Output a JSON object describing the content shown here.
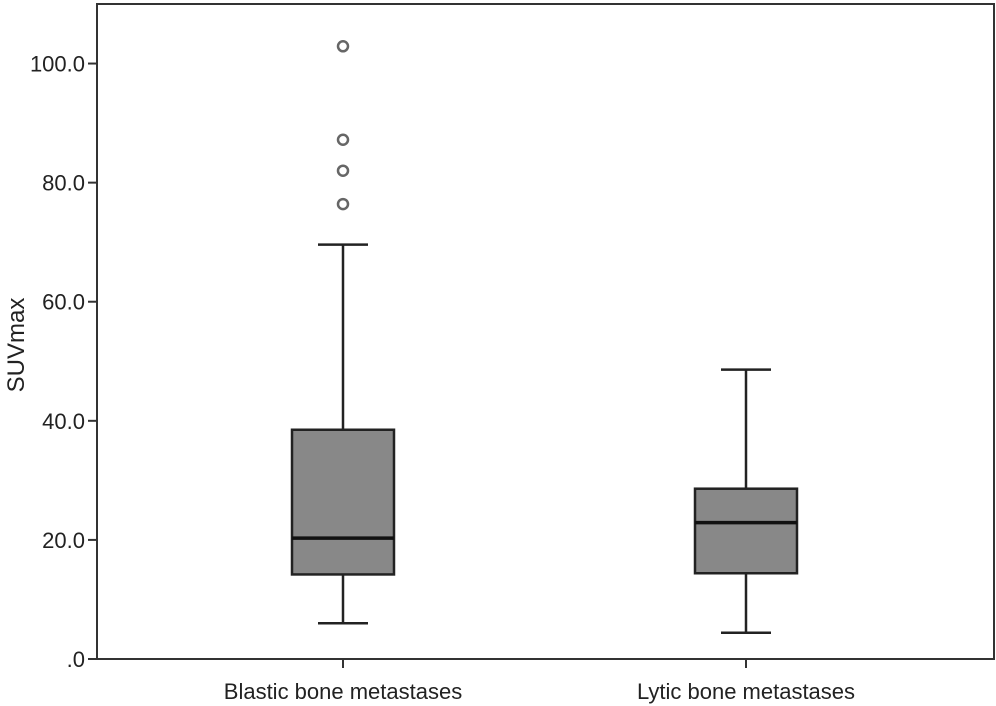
{
  "chart_data": {
    "type": "box",
    "ylabel": "SUVmax",
    "xlabel": "",
    "ylim": [
      0,
      110
    ],
    "yticks": [
      {
        "value": 0,
        "label": ".0"
      },
      {
        "value": 20,
        "label": "20.0"
      },
      {
        "value": 40,
        "label": "40.0"
      },
      {
        "value": 60,
        "label": "60.0"
      },
      {
        "value": 80,
        "label": "80.0"
      },
      {
        "value": 100,
        "label": "100.0"
      }
    ],
    "categories": [
      "Blastic bone metastases",
      "Lytic bone metastases"
    ],
    "boxes": [
      {
        "category": "Blastic bone metastases",
        "min": 6.0,
        "q1": 14.2,
        "median": 20.3,
        "q3": 38.5,
        "max": 69.6,
        "outliers": [
          102.9,
          87.2,
          82.0,
          76.4
        ]
      },
      {
        "category": "Lytic bone metastases",
        "min": 4.4,
        "q1": 14.4,
        "median": 22.9,
        "q3": 28.6,
        "max": 48.6,
        "outliers": []
      }
    ],
    "box_color": "#888888",
    "grid": false,
    "legend": "none"
  }
}
